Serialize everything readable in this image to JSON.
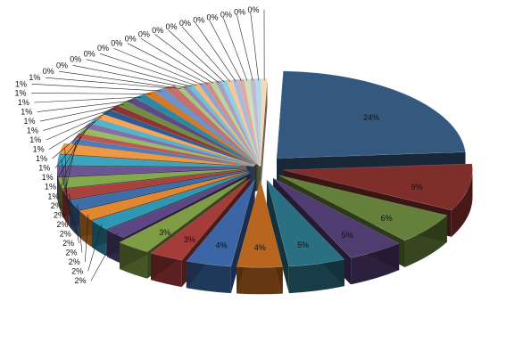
{
  "chart_data": {
    "type": "pie",
    "title": "",
    "legend": "none",
    "slices": [
      {
        "label": "24%",
        "value": 24,
        "color": "#35587f"
      },
      {
        "label": "9%",
        "value": 9,
        "color": "#7f2e2c"
      },
      {
        "label": "6%",
        "value": 6,
        "color": "#64803a"
      },
      {
        "label": "5%",
        "value": 5,
        "color": "#4f3c70"
      },
      {
        "label": "5%",
        "value": 5,
        "color": "#2b6f82"
      },
      {
        "label": "4%",
        "value": 4,
        "color": "#b8661f"
      },
      {
        "label": "4%",
        "value": 4,
        "color": "#3b65a4"
      },
      {
        "label": "3%",
        "value": 3,
        "color": "#a43c3a"
      },
      {
        "label": "3%",
        "value": 3,
        "color": "#7e9c44"
      },
      {
        "label": "2%",
        "value": 2,
        "color": "#5c4784"
      },
      {
        "label": "2%",
        "value": 2,
        "color": "#2f97b4"
      },
      {
        "label": "2%",
        "value": 2,
        "color": "#e08730"
      },
      {
        "label": "2%",
        "value": 2,
        "color": "#3f6da9"
      },
      {
        "label": "2%",
        "value": 2,
        "color": "#a9413f"
      },
      {
        "label": "2%",
        "value": 2,
        "color": "#84a84c"
      },
      {
        "label": "2%",
        "value": 2,
        "color": "#6c5590"
      },
      {
        "label": "2%",
        "value": 2,
        "color": "#3ba5c0"
      },
      {
        "label": "2%",
        "value": 2,
        "color": "#ef9842"
      },
      {
        "label": "1%",
        "value": 1,
        "color": "#4f7bb8"
      },
      {
        "label": "1%",
        "value": 1,
        "color": "#be5552"
      },
      {
        "label": "1%",
        "value": 1,
        "color": "#98bd5f"
      },
      {
        "label": "1%",
        "value": 1,
        "color": "#8370a6"
      },
      {
        "label": "1%",
        "value": 1,
        "color": "#4fb5ce"
      },
      {
        "label": "1%",
        "value": 1,
        "color": "#f5a65a"
      },
      {
        "label": "1%",
        "value": 1,
        "color": "#2f5b91"
      },
      {
        "label": "1%",
        "value": 1,
        "color": "#8f3432"
      },
      {
        "label": "1%",
        "value": 1,
        "color": "#6f8f3e"
      },
      {
        "label": "1%",
        "value": 1,
        "color": "#5d4a82"
      },
      {
        "label": "1%",
        "value": 1,
        "color": "#2c87a1"
      },
      {
        "label": "1%",
        "value": 1,
        "color": "#d27a2a"
      },
      {
        "label": "1%",
        "value": 1,
        "color": "#6f93c8"
      },
      {
        "label": "1%",
        "value": 1,
        "color": "#c86e6b"
      },
      {
        "label": "0%",
        "value": 0.5,
        "color": "#a7c77b"
      },
      {
        "label": "0%",
        "value": 0.5,
        "color": "#9787b6"
      },
      {
        "label": "0%",
        "value": 0.5,
        "color": "#6cc2d8"
      },
      {
        "label": "0%",
        "value": 0.5,
        "color": "#f7b777"
      },
      {
        "label": "0%",
        "value": 0.5,
        "color": "#8aa7d3"
      },
      {
        "label": "0%",
        "value": 0.5,
        "color": "#d38c8a"
      },
      {
        "label": "0%",
        "value": 0.5,
        "color": "#bcd59a"
      },
      {
        "label": "0%",
        "value": 0.5,
        "color": "#ab9dc4"
      },
      {
        "label": "0%",
        "value": 0.5,
        "color": "#8cd0e1"
      },
      {
        "label": "0%",
        "value": 0.5,
        "color": "#f9c897"
      },
      {
        "label": "0%",
        "value": 0.5,
        "color": "#a4bce0"
      },
      {
        "label": "0%",
        "value": 0.5,
        "color": "#deaaa8"
      },
      {
        "label": "0%",
        "value": 0.5,
        "color": "#cfe1b7"
      },
      {
        "label": "0%",
        "value": 0.5,
        "color": "#c3b9d4"
      },
      {
        "label": "0%",
        "value": 0.5,
        "color": "#abdbe8"
      },
      {
        "label": "0%",
        "value": 0.5,
        "color": "#fbd8b5"
      }
    ]
  }
}
